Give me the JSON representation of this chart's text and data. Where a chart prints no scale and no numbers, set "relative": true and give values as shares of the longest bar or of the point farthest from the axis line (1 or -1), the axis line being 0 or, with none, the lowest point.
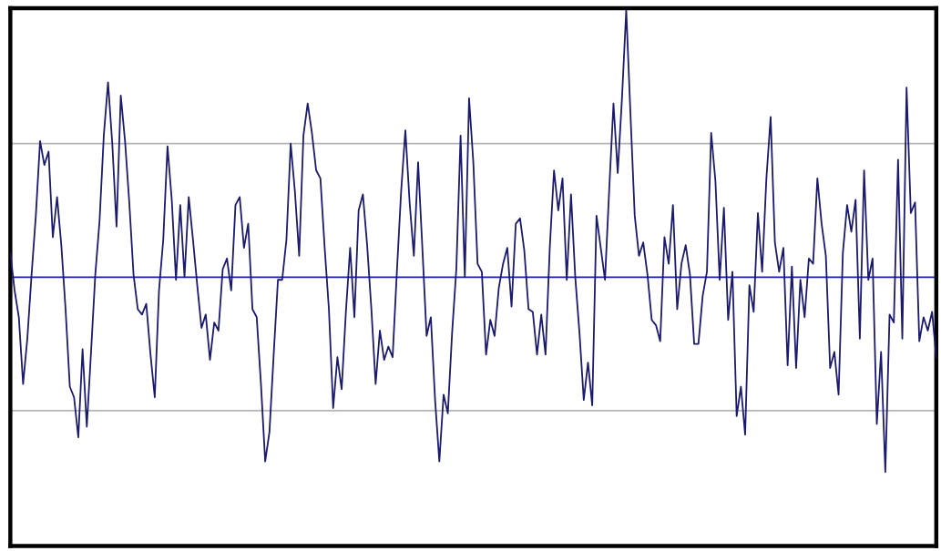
{
  "chart_data": {
    "type": "line",
    "relative": true,
    "marker": "none",
    "line_style": "solid",
    "categories": [
      null,
      null,
      null,
      null,
      null,
      null,
      null,
      null,
      null,
      null,
      null,
      null,
      null,
      null,
      null,
      null,
      null,
      null,
      null,
      null,
      null,
      null,
      null,
      null,
      null,
      null,
      null,
      null,
      null,
      null,
      null,
      null,
      null,
      null,
      null,
      null,
      null,
      null,
      null,
      null,
      null,
      null,
      null,
      null,
      null,
      null,
      null,
      null,
      null,
      null,
      null,
      null,
      null,
      null,
      null,
      null,
      null,
      null,
      null,
      null,
      null,
      null,
      null,
      null,
      null,
      null,
      null,
      null,
      null,
      null,
      null,
      null,
      null,
      null,
      null,
      null,
      null,
      null,
      null,
      null,
      null,
      null,
      null,
      null,
      null,
      null,
      null,
      null,
      null,
      null,
      null,
      null,
      null,
      null,
      null,
      null,
      null,
      null,
      null,
      null,
      null,
      null,
      null,
      null,
      null,
      null,
      null,
      null,
      null,
      null,
      null,
      null,
      null,
      null,
      null,
      null,
      null,
      null,
      null,
      null,
      null,
      null,
      null,
      null,
      null,
      null,
      null,
      null,
      null,
      null,
      null,
      null,
      null,
      null,
      null,
      null,
      null,
      null,
      null,
      null,
      null,
      null,
      null,
      null,
      null,
      null,
      null,
      null,
      null,
      null,
      null,
      null,
      null,
      null,
      null,
      null,
      null,
      null,
      null,
      null,
      null,
      null,
      null,
      null,
      null,
      null,
      null,
      null,
      null,
      null,
      null,
      null,
      null,
      null,
      null,
      null,
      null,
      null,
      null,
      null,
      null,
      null,
      null,
      null,
      null,
      null,
      null,
      null,
      null,
      null,
      null,
      null,
      null,
      null,
      null,
      null,
      null,
      null,
      null,
      null,
      null,
      null,
      null,
      null,
      null,
      null,
      null,
      null,
      null,
      null,
      null,
      null,
      null,
      null,
      null,
      null,
      null,
      null,
      null
    ],
    "series": [
      {
        "color": "#1a1a6e",
        "values": [
          0.09,
          -0.05,
          -0.15,
          -0.4,
          -0.23,
          0.01,
          0.23,
          0.51,
          0.42,
          0.47,
          0.15,
          0.3,
          0.12,
          -0.12,
          -0.41,
          -0.45,
          -0.6,
          -0.27,
          -0.56,
          -0.28,
          0.01,
          0.21,
          0.53,
          0.73,
          0.5,
          0.19,
          0.68,
          0.51,
          0.28,
          0.01,
          -0.12,
          -0.14,
          -0.1,
          -0.29,
          -0.45,
          -0.05,
          0.14,
          0.49,
          0.29,
          -0.01,
          0.27,
          0.0,
          0.3,
          0.14,
          -0.03,
          -0.19,
          -0.14,
          -0.31,
          -0.17,
          -0.2,
          0.03,
          0.07,
          -0.05,
          0.27,
          0.3,
          0.11,
          0.2,
          -0.12,
          -0.15,
          -0.4,
          -0.69,
          -0.58,
          -0.29,
          -0.01,
          -0.01,
          0.14,
          0.5,
          0.32,
          0.08,
          0.53,
          0.65,
          0.54,
          0.4,
          0.37,
          0.11,
          -0.12,
          -0.49,
          -0.3,
          -0.42,
          -0.13,
          0.11,
          -0.15,
          0.25,
          0.31,
          0.12,
          -0.12,
          -0.4,
          -0.2,
          -0.31,
          -0.26,
          -0.3,
          0.02,
          0.32,
          0.55,
          0.28,
          0.08,
          0.43,
          0.11,
          -0.22,
          -0.15,
          -0.46,
          -0.69,
          -0.44,
          -0.51,
          -0.21,
          0.03,
          0.53,
          0.0,
          0.67,
          0.43,
          0.05,
          0.02,
          -0.29,
          -0.16,
          -0.22,
          -0.04,
          0.05,
          0.11,
          -0.11,
          0.2,
          0.22,
          0.1,
          -0.12,
          -0.13,
          -0.29,
          -0.14,
          -0.29,
          0.11,
          0.4,
          0.25,
          0.37,
          -0.01,
          0.31,
          0.0,
          -0.21,
          -0.46,
          -0.32,
          -0.48,
          0.23,
          0.11,
          -0.01,
          0.33,
          0.65,
          0.39,
          0.67,
          1.0,
          0.61,
          0.23,
          0.08,
          0.13,
          0.01,
          -0.16,
          -0.18,
          -0.24,
          0.15,
          0.05,
          0.27,
          -0.12,
          0.05,
          0.12,
          0.01,
          -0.25,
          -0.25,
          -0.07,
          0.02,
          0.54,
          0.36,
          -0.01,
          0.26,
          -0.16,
          0.02,
          -0.52,
          -0.41,
          -0.59,
          -0.03,
          -0.13,
          0.24,
          0.02,
          0.37,
          0.6,
          0.13,
          0.02,
          0.11,
          -0.33,
          0.04,
          -0.34,
          -0.01,
          -0.15,
          0.07,
          0.05,
          0.37,
          0.2,
          0.08,
          -0.34,
          -0.28,
          -0.44,
          0.09,
          0.27,
          0.17,
          0.29,
          -0.23,
          0.4,
          -0.01,
          0.07,
          -0.55,
          -0.28,
          -0.73,
          -0.14,
          -0.17,
          0.44,
          -0.23,
          0.71,
          0.24,
          0.28,
          -0.24,
          -0.15,
          -0.2,
          -0.13,
          -0.3
        ]
      }
    ],
    "ref_lines": [
      {
        "axis": "y",
        "value": 0.5,
        "color": "#b4b4b4",
        "line_style": "solid"
      },
      {
        "axis": "y",
        "value": -0.5,
        "color": "#b4b4b4",
        "line_style": "solid"
      },
      {
        "axis": "y",
        "value": 0,
        "color": "#1c1cb4",
        "line_style": "solid"
      }
    ]
  }
}
